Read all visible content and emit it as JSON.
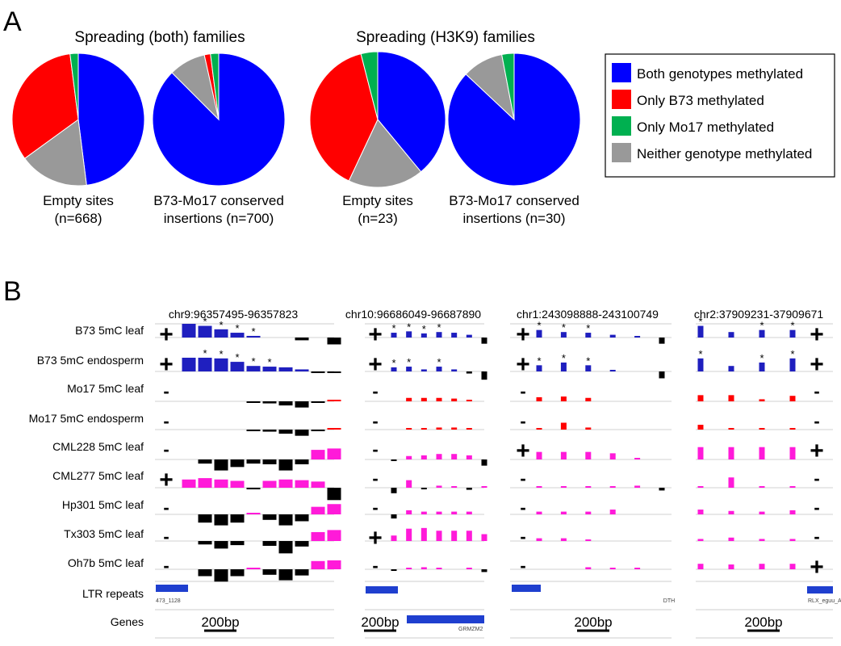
{
  "chart_data": [
    {
      "panel": "A",
      "type": "pie",
      "groups": [
        {
          "title": "Spreading (both) families",
          "pies": [
            {
              "label_lines": [
                "Empty sites",
                "(n=668)"
              ],
              "values": {
                "both": 48,
                "b73": 33,
                "mo17": 2,
                "neither": 17
              }
            },
            {
              "label_lines": [
                "B73-Mo17 conserved",
                "insertions (n=700)"
              ],
              "values": {
                "both": 87.5,
                "b73": 1.5,
                "mo17": 2,
                "neither": 9
              }
            }
          ]
        },
        {
          "title": "Spreading (H3K9)  families",
          "pies": [
            {
              "label_lines": [
                "Empty sites",
                "(n=23)"
              ],
              "values": {
                "both": 39,
                "b73": 39,
                "mo17": 4,
                "neither": 18
              }
            },
            {
              "label_lines": [
                "B73-Mo17 conserved",
                "insertions (n=30)"
              ],
              "values": {
                "both": 87,
                "b73": 0,
                "mo17": 3,
                "neither": 10
              }
            }
          ]
        }
      ],
      "legend": [
        {
          "key": "both",
          "label": "Both genotypes methylated",
          "color": "#0000ff"
        },
        {
          "key": "b73",
          "label": "Only B73 methylated",
          "color": "#ff0000"
        },
        {
          "key": "mo17",
          "label": "Only Mo17 methylated",
          "color": "#00b050"
        },
        {
          "key": "neither",
          "label": "Neither genotype methylated",
          "color": "#999999"
        }
      ],
      "legend_position": "right"
    },
    {
      "panel": "B",
      "type": "bar",
      "row_labels": [
        "B73 5mC leaf",
        "B73 5mC endosperm",
        "Mo17 5mC leaf",
        "Mo17 5mC endosperm",
        "CML228 5mC leaf",
        "CML277 5mC leaf",
        "Hp301 5mC leaf",
        "Tx303 5mC leaf",
        "Oh7b 5mC leaf",
        "LTR repeats",
        "Genes"
      ],
      "row_colors": [
        "#1f1fbf",
        "#1f1fbf",
        "#ff0000",
        "#ff0000",
        "#ff1ad9",
        "#ff1ad9",
        "#ff1ad9",
        "#ff1ad9",
        "#ff1ad9"
      ],
      "negative_color": "#000000",
      "scale_bar": "200bp",
      "regions": [
        {
          "title": "chr9:96357495-96357823",
          "repeat_label": "473_1128",
          "gene_label": "",
          "signs": [
            "+",
            "+",
            "-",
            "-",
            "-",
            "+",
            "-",
            "-",
            "-"
          ],
          "rows": [
            [
              1,
              0.85,
              0.6,
              0.35,
              0.12,
              0,
              0,
              -0.2,
              0,
              -0.5
            ],
            [
              1,
              1,
              0.95,
              0.7,
              0.4,
              0.35,
              0.3,
              0.15,
              -0.1,
              -0.1
            ],
            [
              0,
              0,
              0,
              0,
              -0.05,
              -0.15,
              -0.3,
              -0.45,
              -0.05,
              0.05
            ],
            [
              0,
              0,
              0,
              0,
              -0.05,
              -0.15,
              -0.3,
              -0.45,
              -0.05,
              0.05
            ],
            [
              0,
              -0.3,
              -0.8,
              -0.55,
              -0.3,
              -0.35,
              -0.8,
              -0.35,
              0.7,
              0.8
            ],
            [
              0.6,
              0.7,
              0.6,
              0.5,
              -0.05,
              0.5,
              0.6,
              0.55,
              0.45,
              -0.9
            ],
            [
              0,
              -0.6,
              -0.8,
              -0.6,
              0.05,
              -0.4,
              -0.8,
              -0.5,
              0.55,
              0.75
            ],
            [
              0,
              -0.25,
              -0.55,
              -0.3,
              0,
              -0.35,
              -0.9,
              -0.4,
              0.65,
              0.8
            ],
            [
              0,
              -0.5,
              -0.9,
              -0.5,
              0.1,
              -0.4,
              -0.8,
              -0.45,
              0.6,
              0.65
            ]
          ],
          "stars": [
            [
              1,
              2,
              3,
              4
            ],
            [
              1,
              2,
              3,
              4,
              5
            ]
          ]
        },
        {
          "title": "chr10:96686049-96687890",
          "repeat_label": "",
          "gene_label": "GRMZM2",
          "signs": [
            "+",
            "+",
            "-",
            "-",
            "-",
            "-",
            "-",
            "+",
            "-"
          ],
          "rows": [
            [
              0.35,
              0.45,
              0.3,
              0.4,
              0.35,
              0.2,
              -0.45
            ],
            [
              0.3,
              0.35,
              0.15,
              0.35,
              0.15,
              -0.15,
              -0.6
            ],
            [
              0,
              0.25,
              0.25,
              0.25,
              0.2,
              0.1,
              0
            ],
            [
              0,
              0.1,
              0.1,
              0.15,
              0.15,
              0.1,
              0
            ],
            [
              -0.05,
              0.25,
              0.3,
              0.4,
              0.4,
              0.3,
              -0.45
            ],
            [
              -0.4,
              0.55,
              -0.1,
              0.15,
              0.05,
              -0.15,
              0.05
            ],
            [
              -0.3,
              0.3,
              0.2,
              0.2,
              0.2,
              0.2,
              0
            ],
            [
              0.4,
              0.9,
              0.95,
              0.75,
              0.75,
              0.75,
              0.5
            ],
            [
              -0.1,
              0.05,
              0.15,
              0.05,
              0,
              0.05,
              -0.2
            ]
          ],
          "stars": [
            [
              0,
              1,
              2,
              3
            ],
            [
              0,
              1,
              3
            ]
          ]
        },
        {
          "title": "chr1:243098888-243100749",
          "repeat_label": "DTH",
          "gene_label": "",
          "signs": [
            "+",
            "+",
            "-",
            "-",
            "+",
            "-",
            "-",
            "-",
            "-"
          ],
          "rows": [
            [
              0.55,
              0.4,
              0.35,
              0.2,
              0.1,
              -0.45
            ],
            [
              0.45,
              0.65,
              0.45,
              0.1,
              0,
              -0.5
            ],
            [
              0.3,
              0.35,
              0.25,
              0,
              0,
              0
            ],
            [
              0.1,
              0.5,
              0.15,
              0,
              0,
              0
            ],
            [
              0.55,
              0.55,
              0.55,
              0.45,
              0.1,
              0
            ],
            [
              0.1,
              0.1,
              0.1,
              0.1,
              0.15,
              -0.2
            ],
            [
              0.2,
              0.2,
              0.2,
              0.35,
              0,
              0
            ],
            [
              0.2,
              0.2,
              0.1,
              0,
              0,
              0
            ],
            [
              0,
              0,
              0.15,
              0.1,
              0.1,
              0
            ]
          ],
          "stars": [
            [
              0,
              1,
              2
            ],
            [
              0,
              1,
              2
            ]
          ]
        },
        {
          "title": "chr2:37909231-37909671",
          "repeat_label": "RLX_eguu_A",
          "gene_label": "",
          "signs": [
            "+",
            "+",
            "-",
            "-",
            "+",
            "-",
            "-",
            "-",
            "+"
          ],
          "rows": [
            [
              0.85,
              0.4,
              0.55,
              0.55
            ],
            [
              0.95,
              0.4,
              0.65,
              0.95
            ],
            [
              0.45,
              0.45,
              0.15,
              0.4
            ],
            [
              0.35,
              0.1,
              0.1,
              0.1
            ],
            [
              0.9,
              0.9,
              0.9,
              0.9
            ],
            [
              0.1,
              0.75,
              0.1,
              0.1
            ],
            [
              0.35,
              0.25,
              0.2,
              0.3
            ],
            [
              0.15,
              0.25,
              0.15,
              0.15
            ],
            [
              0.4,
              0.35,
              0.4,
              0.4
            ]
          ],
          "stars": [
            [
              0,
              2,
              3
            ],
            [
              0,
              2,
              3
            ]
          ]
        }
      ]
    }
  ],
  "panel_letters": [
    "A",
    "B"
  ],
  "star_char": "*"
}
